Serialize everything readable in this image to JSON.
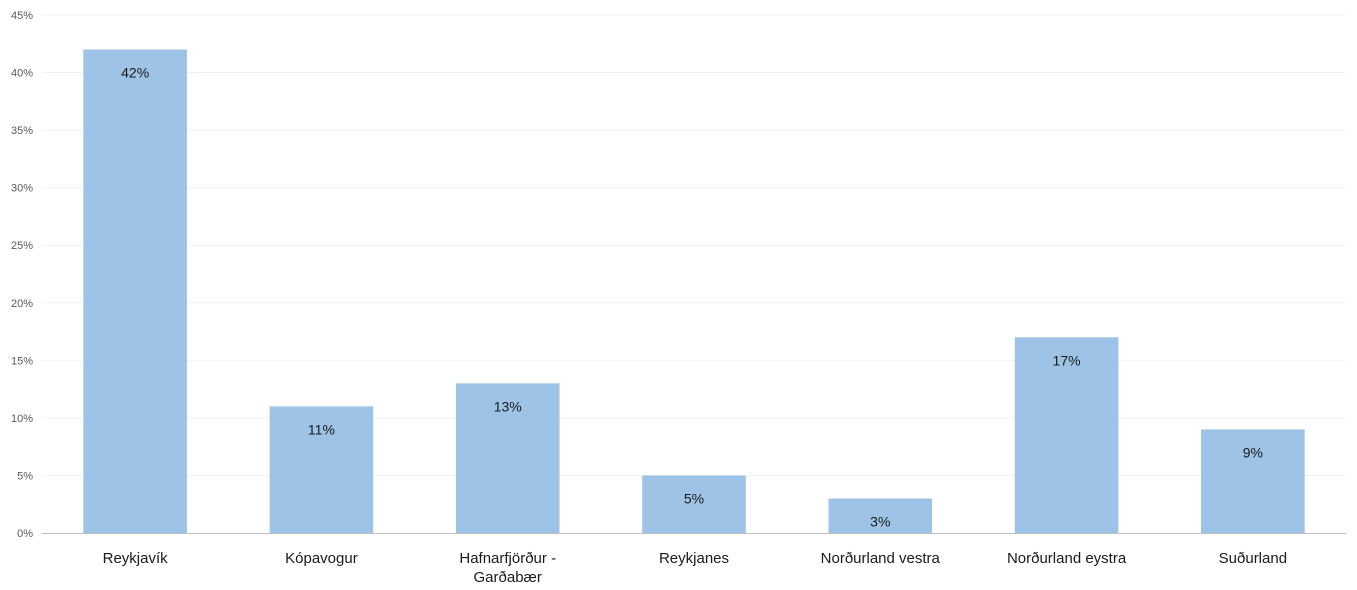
{
  "chart_data": {
    "type": "bar",
    "categories": [
      "Reykjavík",
      "Kópavogur",
      "Hafnarfjörður - Garðabær",
      "Reykjanes",
      "Norðurland vestra",
      "Norðurland eystra",
      "Suðurland"
    ],
    "category_lines": [
      [
        "Reykjavík"
      ],
      [
        "Kópavogur"
      ],
      [
        "Hafnarfjörður -",
        "Garðabær"
      ],
      [
        "Reykjanes"
      ],
      [
        "Norðurland vestra"
      ],
      [
        "Norðurland eystra"
      ],
      [
        "Suðurland"
      ]
    ],
    "values": [
      42,
      11,
      13,
      5,
      3,
      17,
      9
    ],
    "data_labels": [
      "42%",
      "11%",
      "13%",
      "5%",
      "3%",
      "17%",
      "9%"
    ],
    "ylim": [
      0,
      45
    ],
    "y_ticks": [
      0,
      5,
      10,
      15,
      20,
      25,
      30,
      35,
      40,
      45
    ],
    "y_tick_labels": [
      "0%",
      "5%",
      "10%",
      "15%",
      "20%",
      "25%",
      "30%",
      "35%",
      "40%",
      "45%"
    ],
    "title": "",
    "xlabel": "",
    "ylabel": "",
    "grid": true,
    "bar_color": "#9DC3E6",
    "gridline_color": "#F2F2F2",
    "axis_color": "#BFBFBF"
  }
}
